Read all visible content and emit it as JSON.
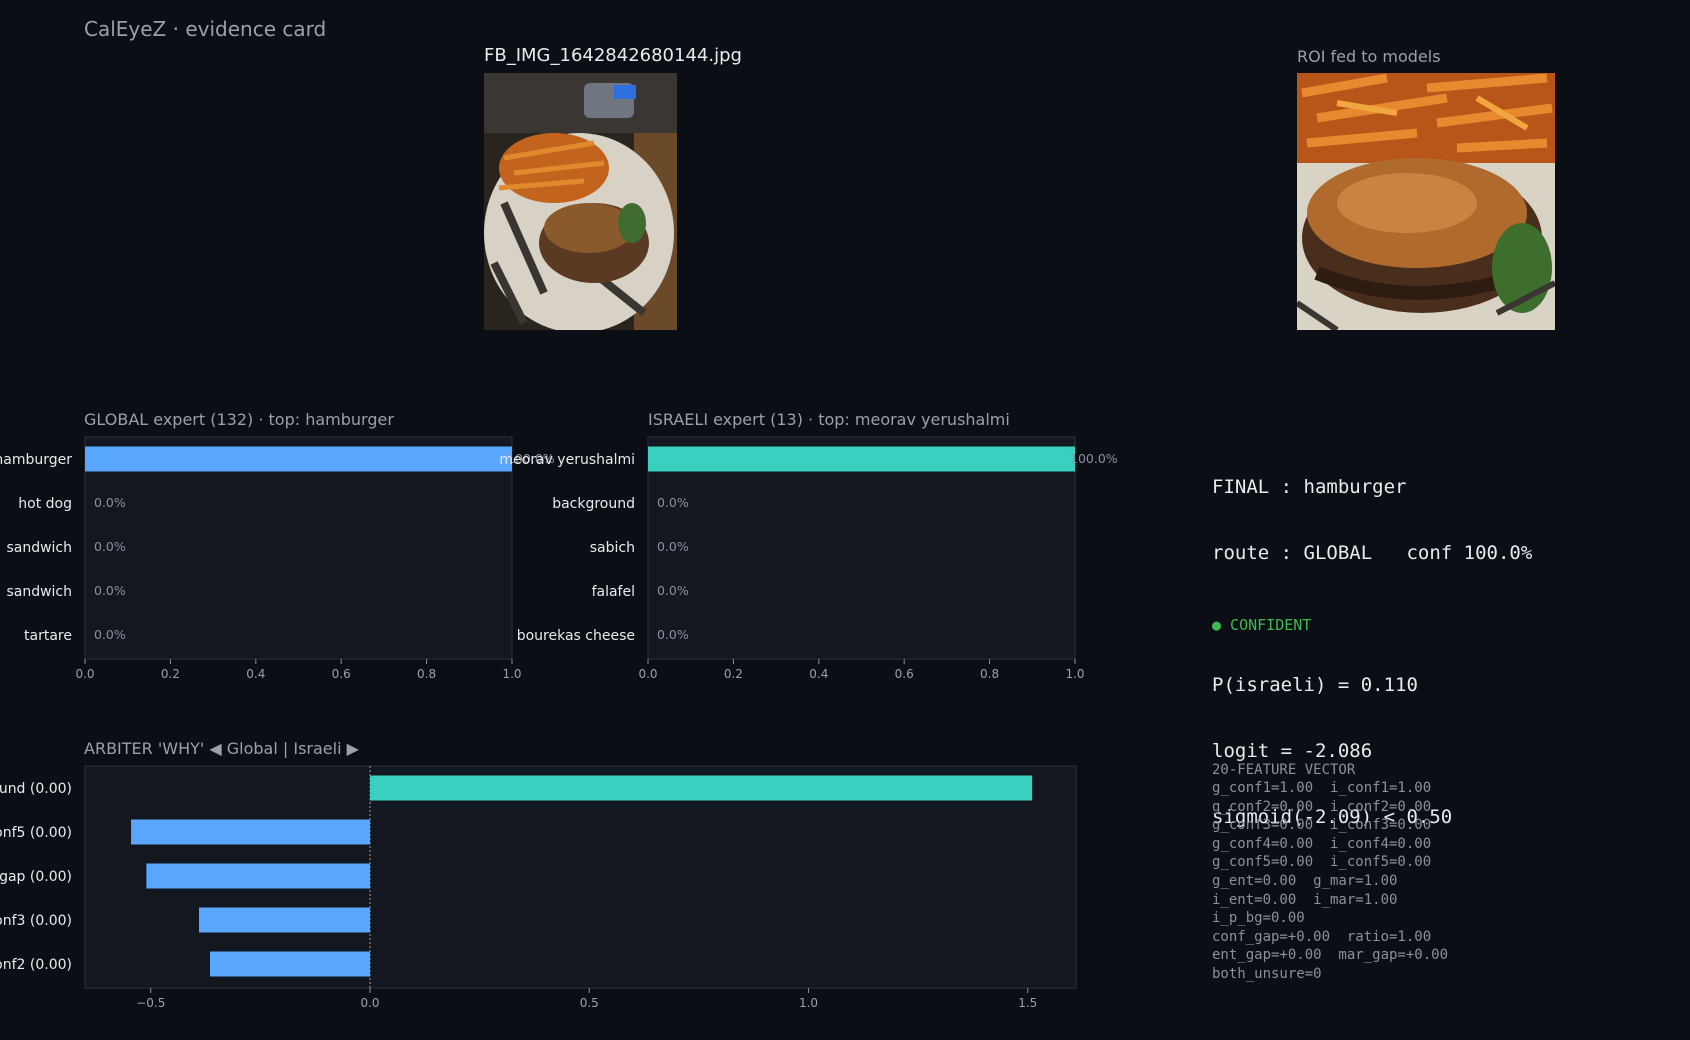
{
  "app_title": "CalEyeZ · evidence card",
  "file_name": "FB_IMG_1642842680144.jpg",
  "roi_title": "ROI fed to models",
  "photo_alt": "food photo: hamburger with fries on printed paper",
  "roi_alt": "ROI crop: hamburger with fries",
  "colors": {
    "background": "#0b0e14",
    "panel": "#121720",
    "global_bar": "#58a6ff",
    "israeli_bar": "#39d0c0",
    "confident": "#3fb950",
    "muted_text": "#9aa0aa"
  },
  "final": {
    "line1": "FINAL : hamburger",
    "line2": "route : GLOBAL   conf 100.0%",
    "line3": "P(israeli) = 0.110",
    "line4": "logit = -2.086",
    "line5": "sigmoid(-2.09) < 0.50"
  },
  "status": "● CONFIDENT",
  "feature_vector": {
    "title": "20-FEATURE VECTOR",
    "lines": [
      "g_conf1=1.00  i_conf1=1.00",
      "g_conf2=0.00  i_conf2=0.00",
      "g_conf3=0.00  i_conf3=0.00",
      "g_conf4=0.00  i_conf4=0.00",
      "g_conf5=0.00  i_conf5=0.00",
      "g_ent=0.00  g_mar=1.00",
      "i_ent=0.00  i_mar=1.00",
      "i_p_bg=0.00",
      "conf_gap=+0.00  ratio=1.00",
      "ent_gap=+0.00  mar_gap=+0.00",
      "both_unsure=0"
    ]
  },
  "chart_data": [
    {
      "id": "global",
      "type": "bar",
      "orientation": "horizontal",
      "title": "GLOBAL expert (132)  ·  top: hamburger",
      "categories": [
        "hamburger",
        "hot dog",
        "sandwich",
        "sandwich",
        "tartare"
      ],
      "values": [
        1.0,
        0.0,
        0.0,
        0.0,
        0.0
      ],
      "value_labels": [
        "100.0%",
        "0.0%",
        "0.0%",
        "0.0%",
        "0.0%"
      ],
      "xlim": [
        0,
        1
      ],
      "xticks": [
        0.0,
        0.2,
        0.4,
        0.6,
        0.8,
        1.0
      ],
      "xtick_labels": [
        "0.0",
        "0.2",
        "0.4",
        "0.6",
        "0.8",
        "1.0"
      ],
      "color": "#58a6ff"
    },
    {
      "id": "israeli",
      "type": "bar",
      "orientation": "horizontal",
      "title": "ISRAELI expert (13)  ·  top: meorav yerushalmi",
      "categories": [
        "meorav yerushalmi",
        "background",
        "sabich",
        "falafel",
        "bourekas cheese"
      ],
      "values": [
        1.0,
        0.0,
        0.0,
        0.0,
        0.0
      ],
      "value_labels": [
        "100.0%",
        "0.0%",
        "0.0%",
        "0.0%",
        "0.0%"
      ],
      "xlim": [
        0,
        1
      ],
      "xticks": [
        0.0,
        0.2,
        0.4,
        0.6,
        0.8,
        1.0
      ],
      "xtick_labels": [
        "0.0",
        "0.2",
        "0.4",
        "0.6",
        "0.8",
        "1.0"
      ],
      "color": "#39d0c0"
    },
    {
      "id": "arbiter",
      "type": "bar",
      "orientation": "horizontal",
      "title": "ARBITER 'WHY'   ◀ Global   |   Israeli ▶",
      "categories": [
        "ound (0.00)",
        "onf5 (0.00)",
        "gap (0.00)",
        "onf3 (0.00)",
        "onf2 (0.00)"
      ],
      "values": [
        1.51,
        -0.545,
        -0.51,
        -0.39,
        -0.365
      ],
      "xlim": [
        -0.65,
        1.61
      ],
      "xticks": [
        -0.5,
        0.0,
        0.5,
        1.0,
        1.5
      ],
      "xtick_labels": [
        "−0.5",
        "0.0",
        "0.5",
        "1.0",
        "1.5"
      ],
      "positive_color": "#39d0c0",
      "negative_color": "#58a6ff"
    }
  ]
}
